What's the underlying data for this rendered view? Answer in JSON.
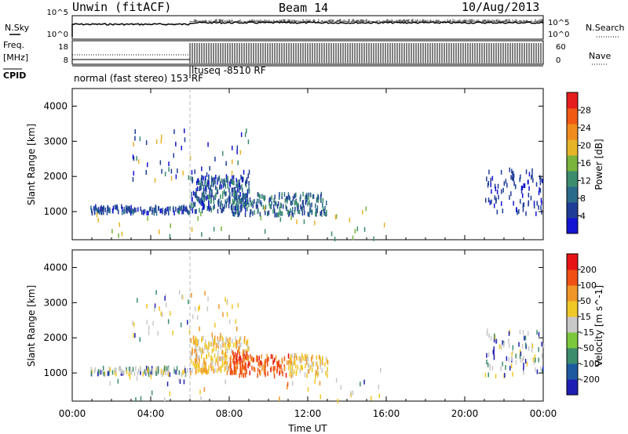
{
  "header": {
    "station": "Unwin (fitACF)",
    "beam": "Beam 14",
    "date": "10/Aug/2013"
  },
  "panels": {
    "nsky_label": "N.Sky",
    "nsearch_label": "N.Search",
    "freq_label": "Freq.",
    "freq_unit": "[MHz]",
    "cpid_label": "CPID",
    "nave_label": "Nave",
    "nsky_ticks": [
      "10^5",
      "10^0"
    ],
    "nsearch_ticks": [
      "10^5",
      "10^0"
    ],
    "freq_ticks": [
      "18",
      "8"
    ],
    "nave_ticks": [
      "60",
      "0"
    ],
    "cpid_mode1": "normal (fast stereo) 153 RF",
    "cpid_mode2": "ltuseq -8510 RF"
  },
  "chart_data": [
    {
      "type": "scatter",
      "title": "",
      "ylabel": "Slant Range [km]",
      "xlabel": "",
      "ylim": [
        200,
        4500
      ],
      "yticks": [
        "4000",
        "3000",
        "2000",
        "1000"
      ],
      "colorbar": {
        "label": "Power [dB]",
        "ticks": [
          "28",
          "24",
          "20",
          "16",
          "12",
          "8",
          "4"
        ],
        "colors": [
          "#1414d2",
          "#1e3c96",
          "#2a6a8a",
          "#3c8c6e",
          "#7ab43c",
          "#e6b428",
          "#f08c1e",
          "#f05a14",
          "#e61e1e"
        ]
      },
      "clusters": [
        {
          "t": [
            0.9,
            6
          ],
          "r": [
            950,
            1300
          ],
          "value": "4-8 dB",
          "color": "blue"
        },
        {
          "t": [
            6,
            9
          ],
          "r": [
            1000,
            2000
          ],
          "value": "4-12 dB",
          "color": "blue"
        },
        {
          "t": [
            8,
            13
          ],
          "r": [
            900,
            1400
          ],
          "value": "4-16 dB",
          "color": "blue-green"
        },
        {
          "t": [
            21,
            24
          ],
          "r": [
            900,
            2200
          ],
          "value": "4-8 dB",
          "color": "blue"
        }
      ]
    },
    {
      "type": "scatter",
      "title": "",
      "ylabel": "Slant Range [km]",
      "xlabel": "Time UT",
      "xticks": [
        "00:00",
        "04:00",
        "08:00",
        "12:00",
        "16:00",
        "20:00",
        "00:00"
      ],
      "ylim": [
        200,
        4500
      ],
      "yticks": [
        "4000",
        "3000",
        "2000",
        "1000"
      ],
      "colorbar": {
        "label": "Velocity [m s^-1]",
        "ticks": [
          "200",
          "100",
          "50",
          "15",
          "-15",
          "-50",
          "-100",
          "-200"
        ],
        "colors": [
          "#1e1eb4",
          "#1e5aa0",
          "#3c8c6e",
          "#7cc83c",
          "#c8c8c8",
          "#f0c828",
          "#f09628",
          "#f05014",
          "#e61414"
        ]
      },
      "clusters": [
        {
          "t": [
            0.9,
            6
          ],
          "r": [
            950,
            1100
          ],
          "value": "-15 to 15",
          "color": "grey"
        },
        {
          "t": [
            6,
            8
          ],
          "r": [
            1000,
            2000
          ],
          "value": "-50 to -15",
          "color": "orange"
        },
        {
          "t": [
            8,
            11
          ],
          "r": [
            1000,
            1500
          ],
          "value": "-200 to -100",
          "color": "red"
        },
        {
          "t": [
            11,
            13
          ],
          "r": [
            900,
            1100
          ],
          "value": "-50 to -15",
          "color": "orange"
        },
        {
          "t": [
            21,
            24
          ],
          "r": [
            900,
            2200
          ],
          "value": "-15 to 15",
          "color": "grey"
        }
      ]
    }
  ]
}
